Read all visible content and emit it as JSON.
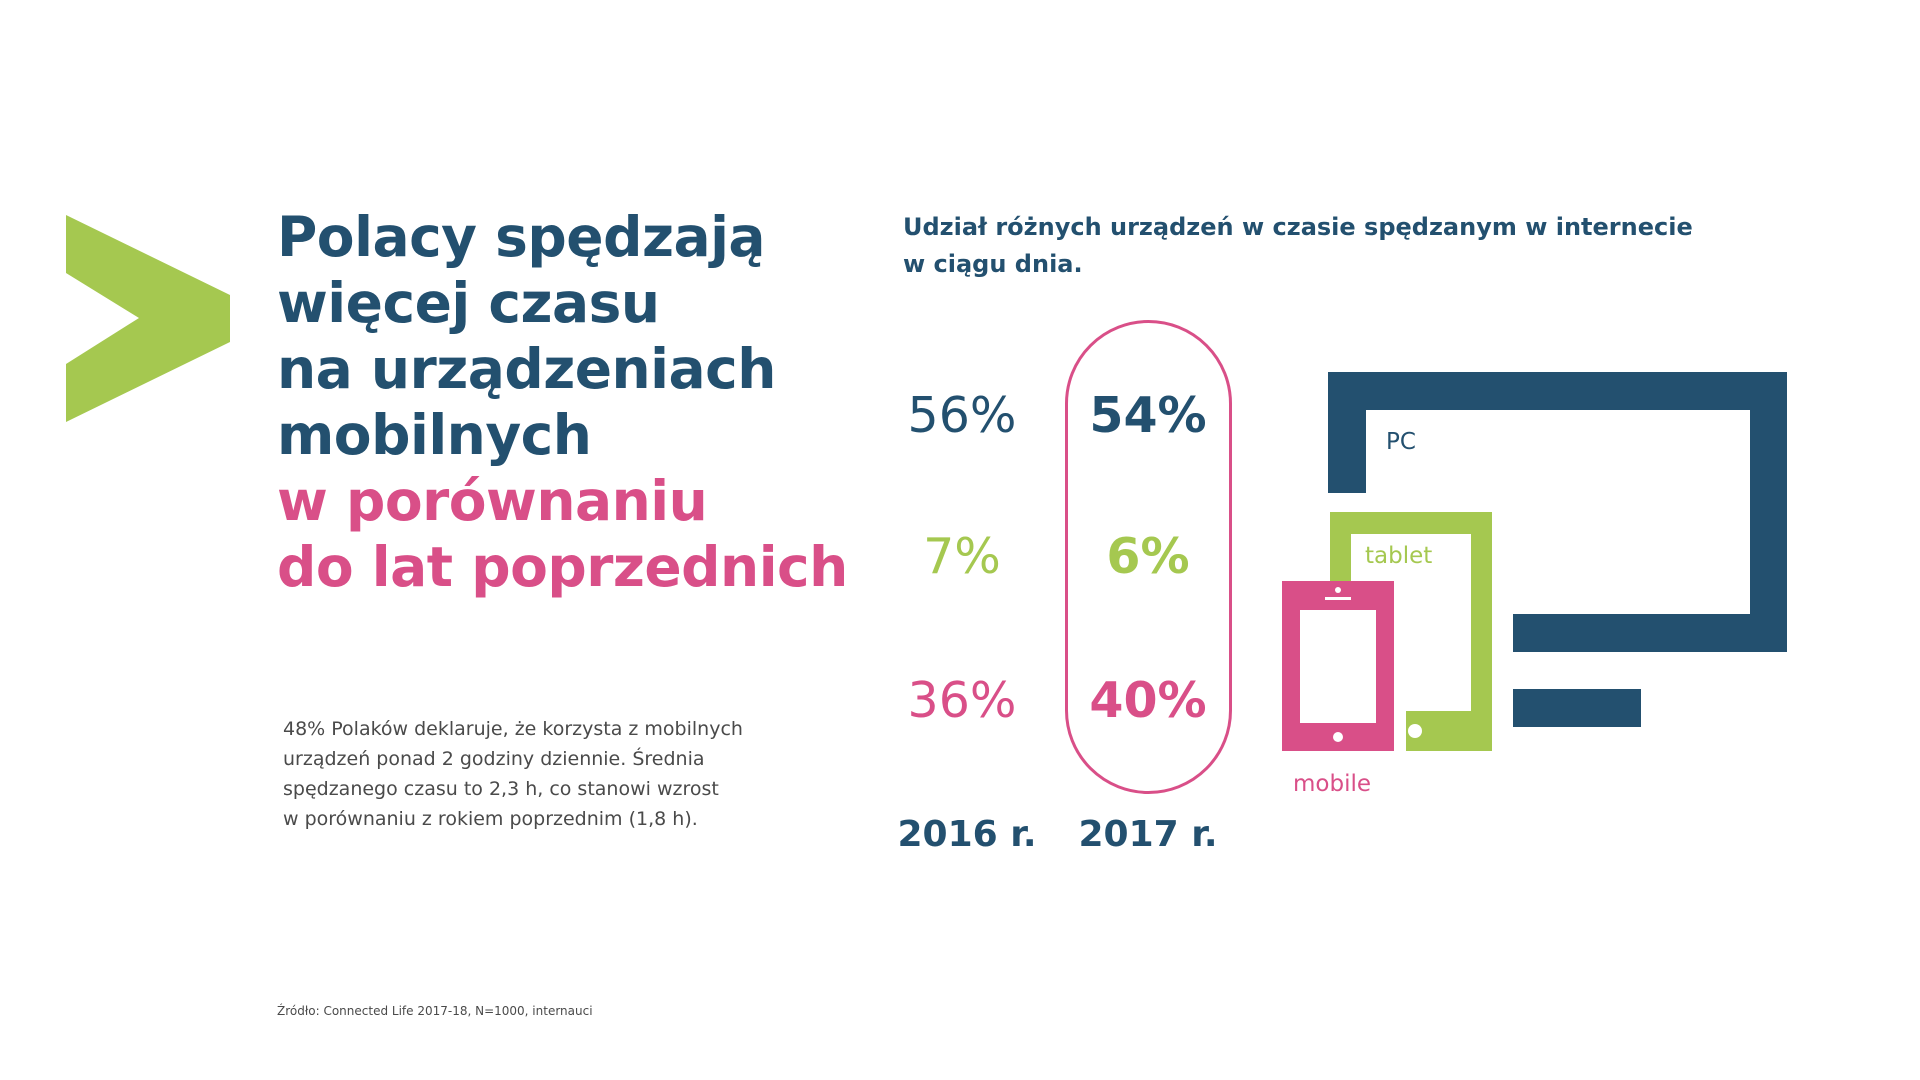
{
  "headline": {
    "lines_dark": [
      "Polacy spędzają",
      "więcej czasu",
      "na urządzeniach",
      "mobilnych"
    ],
    "lines_pink": [
      "w porównaniu",
      "do lat poprzednich"
    ]
  },
  "description": {
    "lines": [
      "48% Polaków deklaruje, że korzysta z  mobilnych",
      "urządzeń ponad 2 godziny dziennie. Średnia",
      "spędzanego czasu to 2,3 h, co stanowi wzrost",
      "w porównaniu z rokiem poprzednim (1,8 h)."
    ]
  },
  "source": "Źródło: Connected Life 2017-18, N=1000, internauci",
  "chart_data": {
    "type": "table",
    "title_lines": [
      "Udział różnych urządzeń w czasie spędzanym w internecie",
      "w ciągu dnia."
    ],
    "categories": [
      "PC",
      "tablet",
      "mobile"
    ],
    "years": [
      "2016 r.",
      "2017 r."
    ],
    "series": [
      {
        "name": "2016 r.",
        "values": [
          56,
          7,
          36
        ],
        "labels": [
          "56%",
          "7%",
          "36%"
        ]
      },
      {
        "name": "2017 r.",
        "values": [
          54,
          6,
          40
        ],
        "labels": [
          "54%",
          "6%",
          "40%"
        ]
      }
    ],
    "highlighted_series": "2017 r.",
    "unit": "%"
  },
  "device_labels": {
    "pc": "PC",
    "tablet": "tablet",
    "mobile": "mobile"
  },
  "colors": {
    "dark": "#23506f",
    "green": "#a5c850",
    "pink": "#d94f88",
    "text": "#4a4a4a"
  }
}
